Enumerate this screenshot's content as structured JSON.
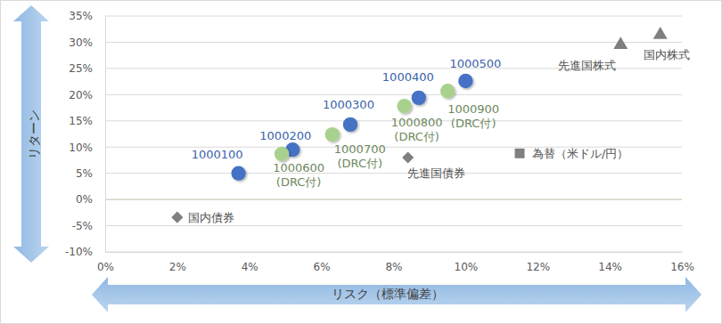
{
  "chart_data": {
    "type": "scatter",
    "xlabel": "リスク（標準偏差）",
    "ylabel": "リターン",
    "xlim": [
      0,
      16
    ],
    "ylim": [
      -10,
      35
    ],
    "xticks": [
      {
        "value": 0,
        "label": "0%"
      },
      {
        "value": 2,
        "label": "2%"
      },
      {
        "value": 4,
        "label": "4%"
      },
      {
        "value": 6,
        "label": "6%"
      },
      {
        "value": 8,
        "label": "8%"
      },
      {
        "value": 10,
        "label": "10%"
      },
      {
        "value": 12,
        "label": "12%"
      },
      {
        "value": 14,
        "label": "14%"
      },
      {
        "value": 16,
        "label": "16%"
      }
    ],
    "yticks": [
      {
        "value": -10,
        "label": "-10%"
      },
      {
        "value": -5,
        "label": "-5%"
      },
      {
        "value": 0,
        "label": "0%"
      },
      {
        "value": 5,
        "label": "5%"
      },
      {
        "value": 10,
        "label": "10%"
      },
      {
        "value": 15,
        "label": "15%"
      },
      {
        "value": 20,
        "label": "20%"
      },
      {
        "value": 25,
        "label": "25%"
      },
      {
        "value": 30,
        "label": "30%"
      },
      {
        "value": 35,
        "label": "35%"
      }
    ],
    "grid": "y",
    "series": [
      {
        "color": "#4472C4",
        "marker": "circle",
        "x": [
          3.7,
          5.2,
          6.8,
          8.7,
          10.0
        ],
        "values": [
          5.0,
          9.5,
          14.3,
          19.4,
          22.6
        ],
        "labels": [
          "1000100",
          "1000200",
          "1000300",
          "1000400",
          "1000500"
        ]
      },
      {
        "color": "#A9D18E",
        "marker": "circle",
        "x": [
          4.9,
          6.3,
          8.3,
          9.5
        ],
        "values": [
          8.7,
          12.4,
          17.8,
          20.7
        ],
        "labels": [
          [
            "1000600",
            "(DRC付)"
          ],
          [
            "1000700",
            "(DRC付)"
          ],
          [
            "1000800",
            "(DRC付)"
          ],
          [
            "1000900",
            "(DRC付)"
          ]
        ]
      },
      {
        "color": "#7F7F7F",
        "marker": "diamond",
        "x": [
          2.0,
          8.4
        ],
        "values": [
          -3.4,
          8.0
        ],
        "labels": [
          "国内債券",
          "先進国債券"
        ]
      },
      {
        "color": "#7F7F7F",
        "marker": "square",
        "x": [
          11.5
        ],
        "values": [
          8.8
        ],
        "labels": [
          "為替（米ドル/円）"
        ]
      },
      {
        "color": "#7F7F7F",
        "marker": "triangle",
        "x": [
          14.3,
          15.4
        ],
        "values": [
          29.5,
          31.4
        ],
        "labels": [
          "先進国株式",
          "国内株式"
        ]
      }
    ]
  }
}
